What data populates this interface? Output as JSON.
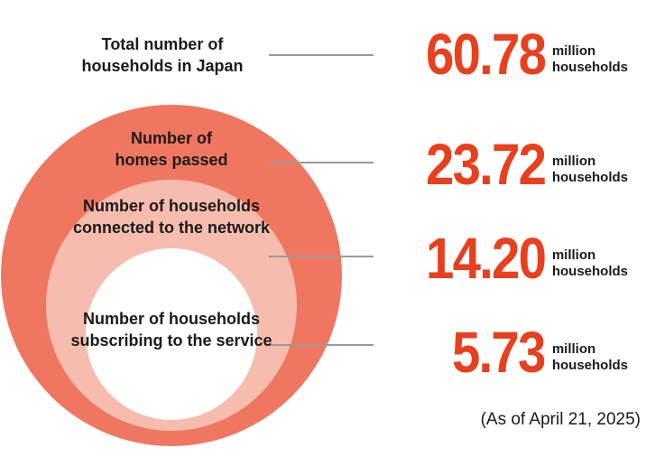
{
  "colors": {
    "outer_ring": "#ef7760",
    "middle_ring": "#f6bcae",
    "inner_circle": "#ffffff",
    "number_red": "#e8401e",
    "leader_line": "#9a9a9a"
  },
  "rows": [
    {
      "id": "total",
      "label_lines": [
        "Total number of",
        "households in Japan"
      ],
      "value": "60.78",
      "unit_lines": [
        "million",
        "households"
      ]
    },
    {
      "id": "passed",
      "label_lines": [
        "Number of",
        "homes passed"
      ],
      "value": "23.72",
      "unit_lines": [
        "million",
        "households"
      ]
    },
    {
      "id": "connected",
      "label_lines": [
        "Number of households",
        "connected to the network"
      ],
      "value": "14.20",
      "unit_lines": [
        "million",
        "households"
      ]
    },
    {
      "id": "subscribing",
      "label_lines": [
        "Number of households",
        "subscribing to the service"
      ],
      "value": "5.73",
      "unit_lines": [
        "million",
        "households"
      ]
    }
  ],
  "footnote": "(As of April 21, 2025)"
}
